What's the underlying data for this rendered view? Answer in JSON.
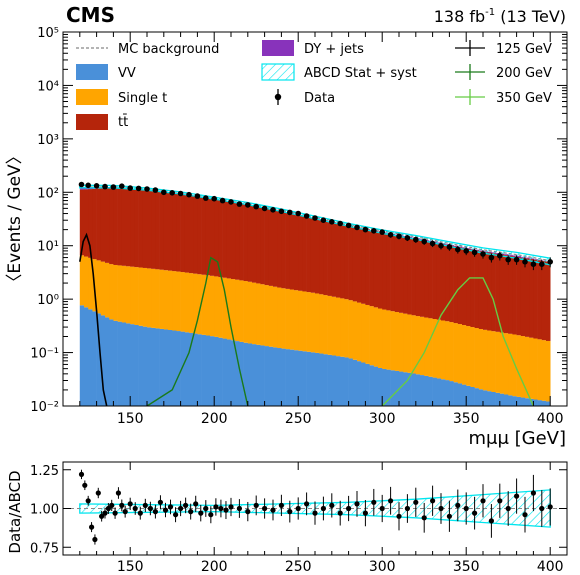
{
  "header": {
    "experiment": "CMS",
    "lumi": "138 fb",
    "lumi_exp": "-1",
    "energy": " (13 TeV)"
  },
  "colors": {
    "vv": "#4a90d9",
    "single_t": "#ffa500",
    "ttbar": "#b5250b",
    "dy": "#8833bb",
    "abcd": "#00e5ee",
    "sig125": "#000000",
    "sig200": "#1a7a1a",
    "sig350": "#66cc44",
    "data": "#000000",
    "mcbkg": "#888888"
  },
  "legend": {
    "mc_bkg": "MC background",
    "vv": "VV",
    "single_t": "Single t",
    "ttbar": "tt̄",
    "dy": "DY + jets",
    "abcd": "ABCD Stat + syst",
    "data": "Data",
    "sig125": "125 GeV",
    "sig200": "200 GeV",
    "sig350": "350 GeV"
  },
  "chart_data": [
    {
      "type": "bar",
      "panel": "main",
      "ylabel": "〈Events / GeV〉",
      "xlabel": "mμμ [GeV]",
      "xlim": [
        110,
        410
      ],
      "ylim": [
        0.01,
        100000
      ],
      "log_y": true,
      "y_ticks": [
        "10⁻²",
        "10⁻¹",
        "10⁰",
        "10¹",
        "10²",
        "10³",
        "10⁴",
        "10⁵"
      ],
      "x_ticks": [
        "150",
        "200",
        "250",
        "300",
        "350",
        "400"
      ],
      "stack_total": [
        [
          120,
          125
        ],
        [
          140,
          125
        ],
        [
          160,
          112
        ],
        [
          180,
          95
        ],
        [
          200,
          76
        ],
        [
          220,
          60
        ],
        [
          240,
          45
        ],
        [
          260,
          33
        ],
        [
          280,
          24
        ],
        [
          300,
          18
        ],
        [
          320,
          14
        ],
        [
          340,
          10.5
        ],
        [
          360,
          8
        ],
        [
          380,
          6.5
        ],
        [
          400,
          5
        ]
      ],
      "ttbar": [
        [
          120,
          105
        ],
        [
          140,
          118
        ],
        [
          160,
          105
        ],
        [
          180,
          90
        ],
        [
          200,
          72
        ],
        [
          220,
          57
        ],
        [
          240,
          43
        ],
        [
          260,
          31
        ],
        [
          280,
          23
        ],
        [
          300,
          17
        ],
        [
          320,
          13
        ],
        [
          340,
          9.8
        ],
        [
          360,
          7.5
        ],
        [
          380,
          6
        ],
        [
          400,
          4.8
        ]
      ],
      "single_t": [
        [
          120,
          6
        ],
        [
          140,
          4
        ],
        [
          160,
          3.5
        ],
        [
          180,
          3
        ],
        [
          200,
          2.5
        ],
        [
          220,
          2
        ],
        [
          240,
          1.5
        ],
        [
          260,
          1.2
        ],
        [
          280,
          0.9
        ],
        [
          300,
          0.6
        ],
        [
          320,
          0.45
        ],
        [
          340,
          0.35
        ],
        [
          360,
          0.25
        ],
        [
          380,
          0.2
        ],
        [
          400,
          0.15
        ]
      ],
      "vv": [
        [
          120,
          0.8
        ],
        [
          140,
          0.4
        ],
        [
          160,
          0.3
        ],
        [
          180,
          0.25
        ],
        [
          200,
          0.2
        ],
        [
          220,
          0.15
        ],
        [
          240,
          0.12
        ],
        [
          260,
          0.1
        ],
        [
          280,
          0.08
        ],
        [
          300,
          0.05
        ],
        [
          320,
          0.04
        ],
        [
          340,
          0.03
        ],
        [
          360,
          0.02
        ],
        [
          380,
          0.015
        ],
        [
          400,
          0.012
        ]
      ],
      "data": [
        [
          121,
          140
        ],
        [
          125,
          135
        ],
        [
          130,
          132
        ],
        [
          135,
          128
        ],
        [
          140,
          125
        ],
        [
          145,
          130
        ],
        [
          150,
          120
        ],
        [
          155,
          118
        ],
        [
          160,
          115
        ],
        [
          165,
          110
        ],
        [
          170,
          100
        ],
        [
          175,
          98
        ],
        [
          180,
          95
        ],
        [
          185,
          90
        ],
        [
          190,
          85
        ],
        [
          195,
          78
        ],
        [
          200,
          76
        ],
        [
          205,
          70
        ],
        [
          210,
          66
        ],
        [
          215,
          60
        ],
        [
          220,
          58
        ],
        [
          225,
          54
        ],
        [
          230,
          50
        ],
        [
          235,
          47
        ],
        [
          240,
          44
        ],
        [
          245,
          42
        ],
        [
          250,
          40
        ],
        [
          255,
          36
        ],
        [
          260,
          33
        ],
        [
          265,
          30
        ],
        [
          270,
          28
        ],
        [
          275,
          26
        ],
        [
          280,
          24
        ],
        [
          285,
          22
        ],
        [
          290,
          20
        ],
        [
          295,
          19
        ],
        [
          300,
          18
        ],
        [
          305,
          16
        ],
        [
          310,
          15
        ],
        [
          315,
          14
        ],
        [
          320,
          13
        ],
        [
          325,
          12
        ],
        [
          330,
          11
        ],
        [
          335,
          10
        ],
        [
          340,
          9.5
        ],
        [
          345,
          8.5
        ],
        [
          350,
          8
        ],
        [
          355,
          7.5
        ],
        [
          360,
          7
        ],
        [
          365,
          6
        ],
        [
          370,
          6.5
        ],
        [
          375,
          5.5
        ],
        [
          380,
          5.5
        ],
        [
          385,
          5
        ],
        [
          390,
          4.5
        ],
        [
          395,
          4.5
        ],
        [
          400,
          5
        ]
      ],
      "sig125": [
        [
          120,
          5
        ],
        [
          122,
          12
        ],
        [
          124,
          16
        ],
        [
          126,
          10
        ],
        [
          128,
          3
        ],
        [
          130,
          0.6
        ],
        [
          132,
          0.1
        ],
        [
          134,
          0.02
        ],
        [
          136,
          0.01
        ]
      ],
      "sig200": [
        [
          160,
          0.01
        ],
        [
          175,
          0.02
        ],
        [
          185,
          0.1
        ],
        [
          190,
          0.4
        ],
        [
          195,
          2
        ],
        [
          198,
          6
        ],
        [
          202,
          5
        ],
        [
          206,
          1.5
        ],
        [
          210,
          0.3
        ],
        [
          215,
          0.05
        ],
        [
          220,
          0.01
        ]
      ],
      "sig350": [
        [
          300,
          0.01
        ],
        [
          315,
          0.03
        ],
        [
          325,
          0.1
        ],
        [
          335,
          0.5
        ],
        [
          345,
          1.5
        ],
        [
          352,
          2.5
        ],
        [
          360,
          2.5
        ],
        [
          366,
          1
        ],
        [
          372,
          0.2
        ],
        [
          380,
          0.05
        ],
        [
          390,
          0.01
        ]
      ]
    },
    {
      "type": "scatter",
      "panel": "ratio",
      "ylabel": "Data/ABCD",
      "xlim": [
        110,
        410
      ],
      "ylim": [
        0.7,
        1.3
      ],
      "y_ticks": [
        "0.75",
        "1.00",
        "1.25"
      ],
      "x_ticks": [
        "150",
        "200",
        "250",
        "300",
        "350",
        "400"
      ],
      "band": [
        [
          120,
          0.03
        ],
        [
          200,
          0.02
        ],
        [
          280,
          0.04
        ],
        [
          320,
          0.06
        ],
        [
          360,
          0.09
        ],
        [
          400,
          0.12
        ]
      ],
      "ratio": [
        [
          121,
          1.22
        ],
        [
          123,
          1.15
        ],
        [
          125,
          1.05
        ],
        [
          127,
          0.88
        ],
        [
          129,
          0.8
        ],
        [
          131,
          1.1
        ],
        [
          133,
          0.95
        ],
        [
          135,
          0.97
        ],
        [
          137,
          1.0
        ],
        [
          139,
          1.02
        ],
        [
          141,
          0.97
        ],
        [
          143,
          1.1
        ],
        [
          145,
          1.02
        ],
        [
          147,
          0.98
        ],
        [
          150,
          1.03
        ],
        [
          153,
          1.0
        ],
        [
          156,
          0.97
        ],
        [
          159,
          1.02
        ],
        [
          162,
          1.0
        ],
        [
          165,
          0.98
        ],
        [
          168,
          1.04
        ],
        [
          171,
          0.99
        ],
        [
          174,
          1.01
        ],
        [
          177,
          0.96
        ],
        [
          180,
          1.0
        ],
        [
          183,
          1.02
        ],
        [
          186,
          0.98
        ],
        [
          189,
          1.03
        ],
        [
          192,
          0.97
        ],
        [
          195,
          1.0
        ],
        [
          198,
          0.96
        ],
        [
          201,
          1.01
        ],
        [
          204,
          1.0
        ],
        [
          207,
          0.99
        ],
        [
          210,
          1.01
        ],
        [
          215,
          1.0
        ],
        [
          220,
          0.98
        ],
        [
          225,
          1.02
        ],
        [
          230,
          1.0
        ],
        [
          235,
          0.99
        ],
        [
          240,
          1.02
        ],
        [
          245,
          0.98
        ],
        [
          250,
          1.0
        ],
        [
          255,
          1.03
        ],
        [
          260,
          0.97
        ],
        [
          265,
          1.0
        ],
        [
          270,
          1.02
        ],
        [
          275,
          0.97
        ],
        [
          280,
          1.0
        ],
        [
          285,
          1.03
        ],
        [
          290,
          0.97
        ],
        [
          295,
          1.04
        ],
        [
          300,
          1.0
        ],
        [
          305,
          1.05
        ],
        [
          310,
          0.95
        ],
        [
          315,
          1.0
        ],
        [
          320,
          1.04
        ],
        [
          325,
          0.94
        ],
        [
          330,
          1.05
        ],
        [
          335,
          1.0
        ],
        [
          340,
          0.95
        ],
        [
          345,
          1.02
        ],
        [
          350,
          1.0
        ],
        [
          355,
          0.97
        ],
        [
          360,
          1.05
        ],
        [
          365,
          0.92
        ],
        [
          370,
          1.05
        ],
        [
          375,
          1.0
        ],
        [
          380,
          1.08
        ],
        [
          385,
          0.96
        ],
        [
          390,
          1.1
        ],
        [
          395,
          1.0
        ],
        [
          400,
          1.01
        ]
      ]
    }
  ]
}
